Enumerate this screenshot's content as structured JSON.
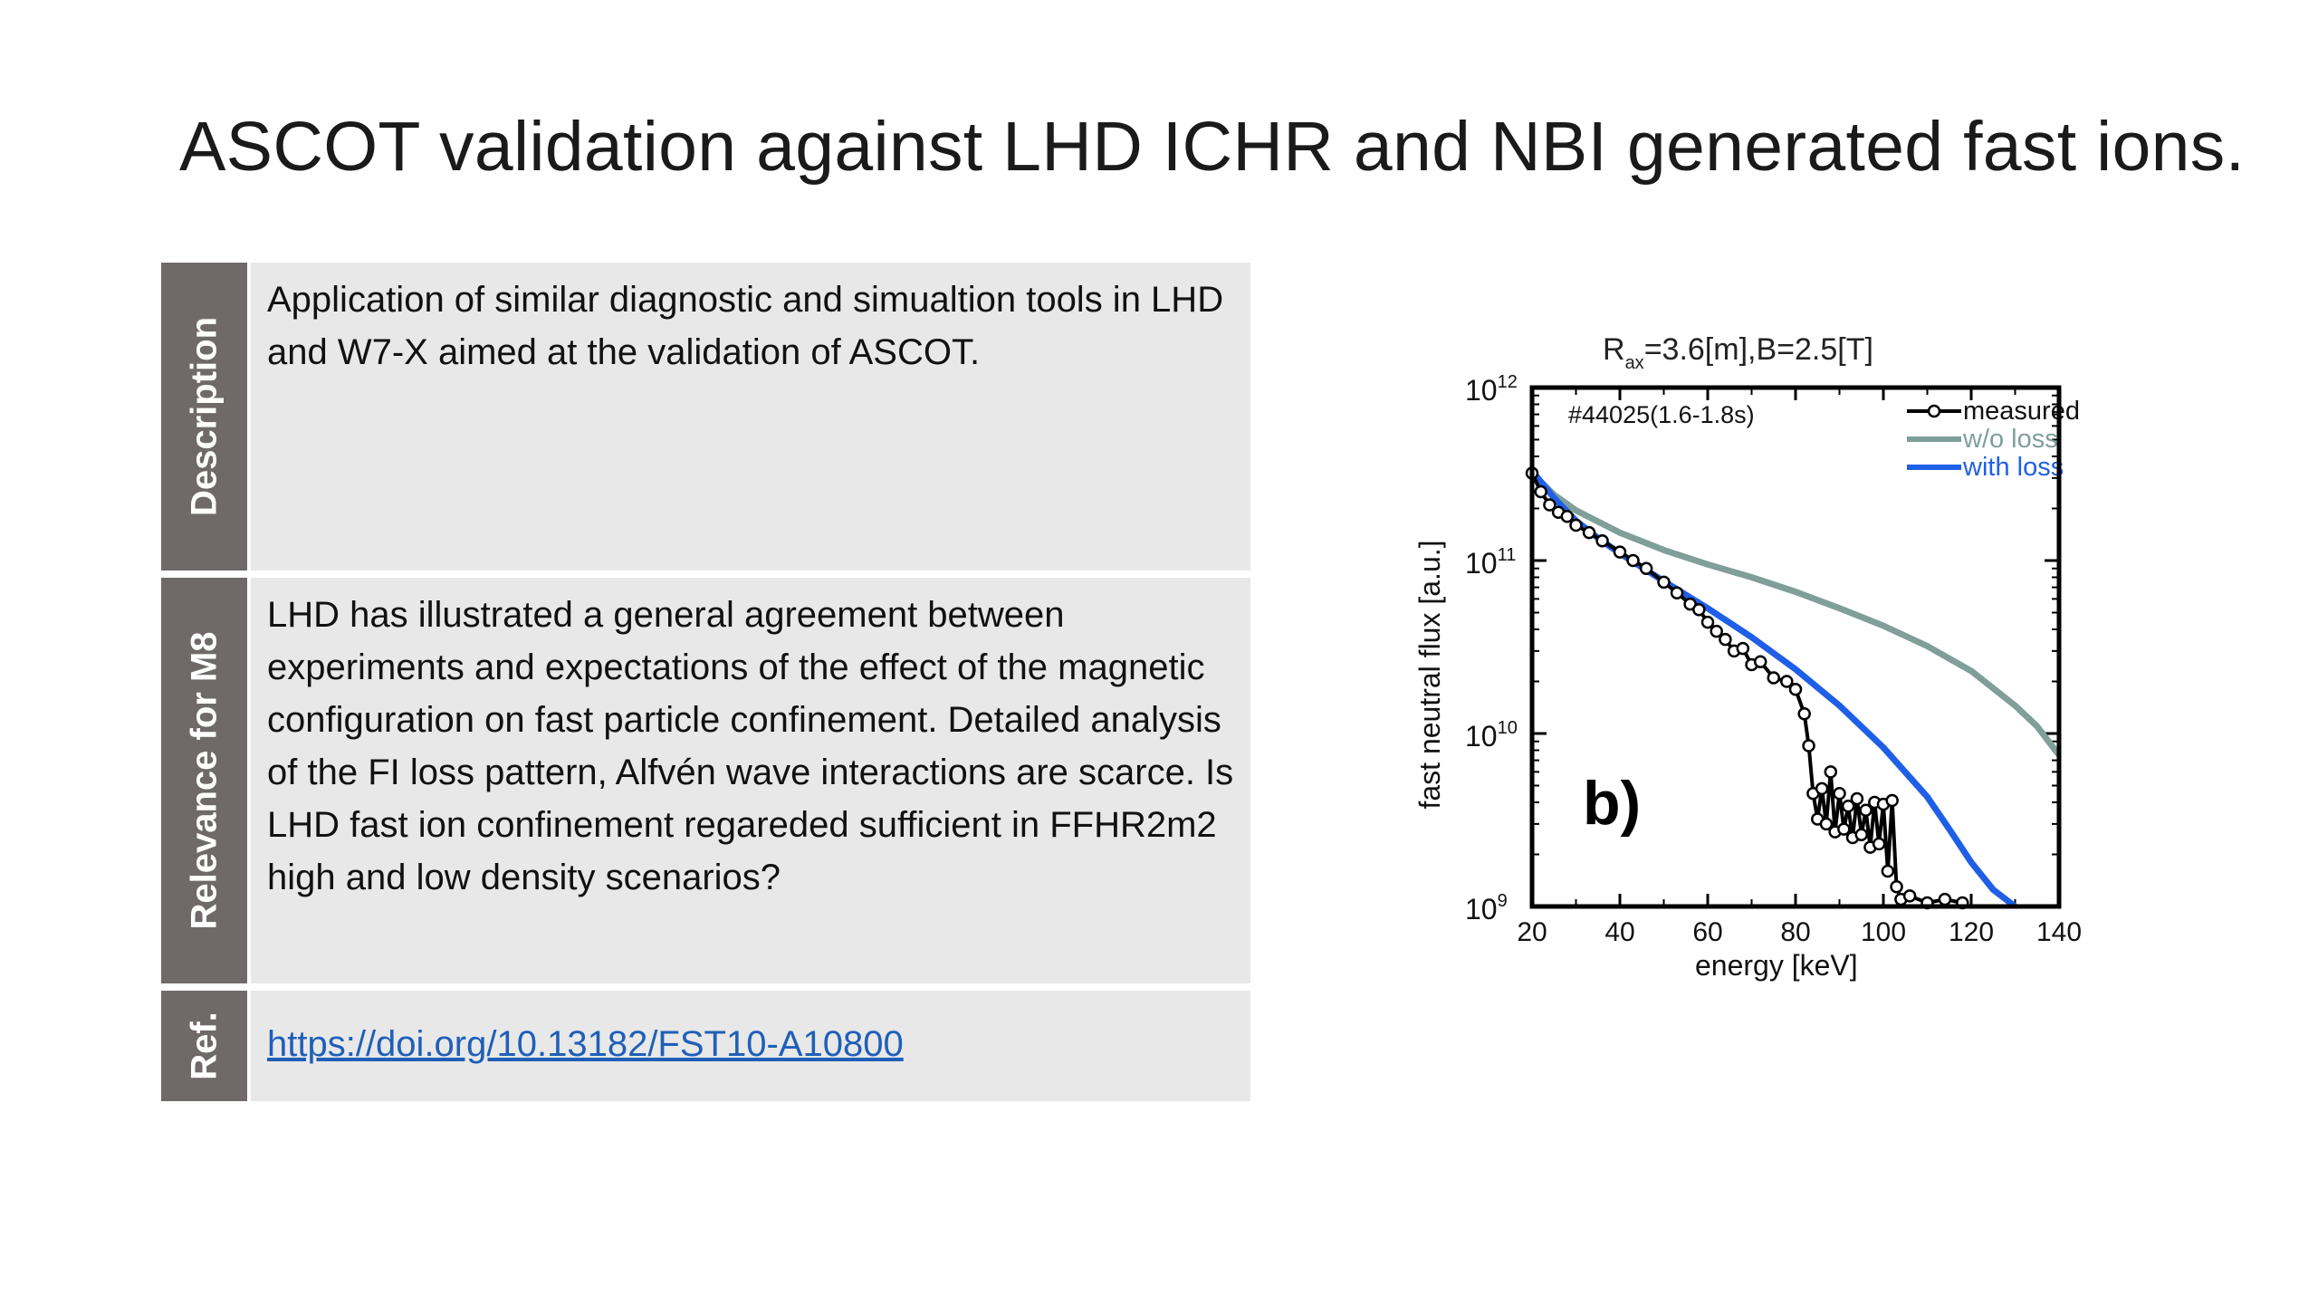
{
  "title": "ASCOT validation against LHD ICHR and NBI generated fast ions.",
  "table": {
    "rows": [
      {
        "label": "Description",
        "text": "Application of similar diagnostic and simualtion tools in LHD and W7-X aimed at the validation of ASCOT."
      },
      {
        "label": "Relevance for M8",
        "text": "LHD has illustrated a general agreement between experiments and expectations of the effect of the magnetic configuration on fast particle confinement. Detailed analysis of the FI loss pattern, Alfvén wave interactions are scarce. Is LHD fast ion confinement regareded sufficient in FFHR2m2 high and low density scenarios?"
      },
      {
        "label": "Ref.",
        "link": "https://doi.org/10.13182/FST10-A10800"
      }
    ]
  },
  "chart_data": {
    "type": "line",
    "title_main": "R",
    "title_sub": "ax",
    "title_rest": "=3.6[m],B=2.5[T]",
    "annotation": "#44025(1.6-1.8s)",
    "panel_label": "b)",
    "xlabel": "energy [keV]",
    "ylabel": "fast neutral flux [a.u.]",
    "xlim": [
      20,
      140
    ],
    "ylim_log10": [
      9,
      12
    ],
    "y_log_scale": true,
    "x_ticks": [
      "20",
      "40",
      "60",
      "80",
      "100",
      "120",
      "140"
    ],
    "y_ticks": [
      {
        "base": "10",
        "exp": "12"
      },
      {
        "base": "10",
        "exp": "11"
      },
      {
        "base": "10",
        "exp": "10"
      },
      {
        "base": "10",
        "exp": "9"
      }
    ],
    "legend_position": "top-right",
    "series": [
      {
        "name": "measured",
        "color": "#000000",
        "markers": true,
        "x": [
          20,
          22,
          24,
          26,
          28,
          30,
          33,
          36,
          40,
          43,
          46,
          50,
          53,
          56,
          58,
          60,
          62,
          64,
          66,
          68,
          70,
          72,
          75,
          78,
          80,
          82,
          83,
          84,
          85,
          86,
          87,
          88,
          89,
          90,
          91,
          92,
          93,
          94,
          95,
          96,
          97,
          98,
          99,
          100,
          101,
          102,
          103,
          104,
          106,
          110,
          114,
          118
        ],
        "y": [
          320000000000.0,
          250000000000.0,
          210000000000.0,
          190000000000.0,
          180000000000.0,
          160000000000.0,
          145000000000.0,
          130000000000.0,
          112000000000.0,
          100000000000.0,
          90000000000.0,
          75000000000.0,
          65000000000.0,
          56000000000.0,
          52000000000.0,
          44000000000.0,
          39000000000.0,
          35000000000.0,
          30000000000.0,
          31000000000.0,
          25000000000.0,
          26000000000.0,
          21000000000.0,
          20000000000.0,
          18000000000.0,
          13000000000.0,
          8500000000.0,
          4500000000.0,
          3200000000.0,
          4800000000.0,
          3000000000.0,
          6000000000.0,
          2700000000.0,
          4500000000.0,
          2800000000.0,
          3800000000.0,
          2500000000.0,
          4200000000.0,
          2600000000.0,
          3600000000.0,
          2200000000.0,
          4000000000.0,
          2300000000.0,
          3900000000.0,
          1600000000.0,
          4100000000.0,
          1300000000.0,
          1100000000.0,
          1150000000.0,
          1050000000.0,
          1100000000.0,
          1050000000.0
        ]
      },
      {
        "name": "w/o loss",
        "color": "#7f9f98",
        "x": [
          20,
          25,
          30,
          40,
          50,
          60,
          70,
          80,
          90,
          100,
          110,
          120,
          130,
          135,
          140
        ],
        "y": [
          320000000000.0,
          240000000000.0,
          195000000000.0,
          145000000000.0,
          115000000000.0,
          95000000000.0,
          80000000000.0,
          66000000000.0,
          53000000000.0,
          42000000000.0,
          32000000000.0,
          23000000000.0,
          14500000000.0,
          11000000000.0,
          7500000000.0
        ]
      },
      {
        "name": "with loss",
        "color": "#1f5fe8",
        "x": [
          20,
          25,
          30,
          35,
          40,
          50,
          60,
          70,
          80,
          90,
          100,
          110,
          115,
          120,
          125,
          130
        ],
        "y": [
          330000000000.0,
          230000000000.0,
          170000000000.0,
          135000000000.0,
          110000000000.0,
          76000000000.0,
          53000000000.0,
          36000000000.0,
          23500000000.0,
          14500000000.0,
          8300000000.0,
          4300000000.0,
          2800000000.0,
          1800000000.0,
          1250000000.0,
          850000000.0
        ]
      }
    ]
  }
}
